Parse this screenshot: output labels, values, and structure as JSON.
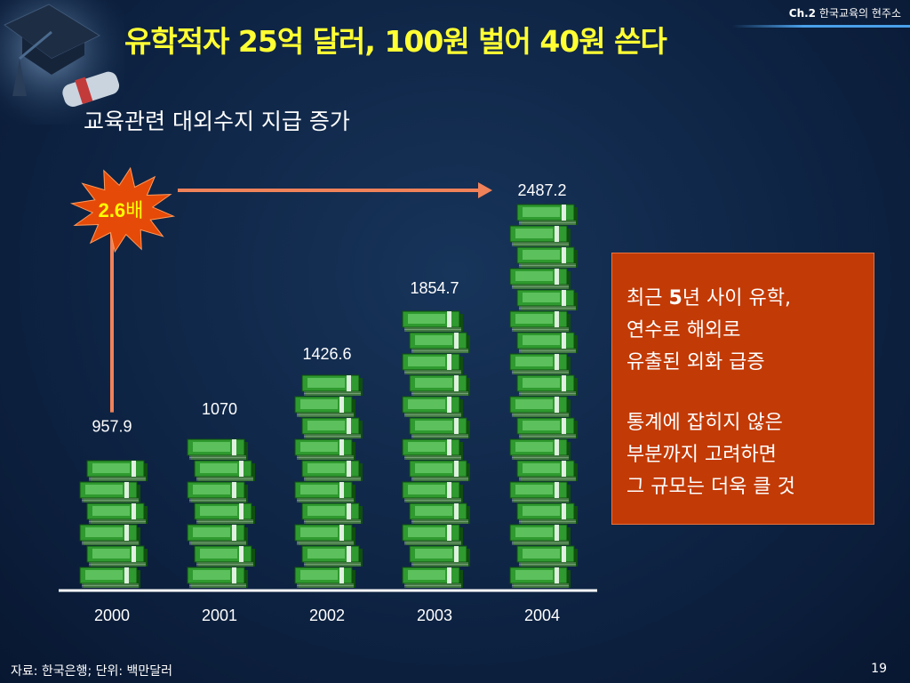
{
  "header": {
    "chapter_num": "Ch.2",
    "chapter_title": "한국교육의 현주소",
    "title": "유학적자 25억 달러, 100원 벌어 40원 쓴다",
    "subtitle": "교육관련 대외수지 지급 증가"
  },
  "chart_data": {
    "type": "bar",
    "style": "pictogram-stacked-money-bundles",
    "title": "",
    "xlabel": "",
    "ylabel": "",
    "categories": [
      "2000",
      "2001",
      "2002",
      "2003",
      "2004"
    ],
    "values": [
      957.9,
      1070,
      1426.6,
      1854.7,
      2487.2
    ],
    "value_labels": [
      "957.9",
      "1070",
      "1426.6",
      "1854.7",
      "2487.2"
    ],
    "ylim": [
      0,
      2487.2
    ],
    "grid": false,
    "annotation": {
      "label_num": "2.6",
      "label_unit": "배",
      "from_category": "2000",
      "to_category": "2004",
      "color": "#f0825a",
      "burst_color": "#e64a08",
      "text_color": "#ffff00"
    },
    "colors": {
      "bundle": "#2f9a2f",
      "bundle_light": "#6fd06f",
      "bundle_dark": "#0f4f0f",
      "baseline": "#ffffff"
    }
  },
  "callout": {
    "lines": [
      {
        "pre": "최근 ",
        "bold": "5",
        "post": "년 사이 유학,"
      },
      {
        "pre": "연수로 해외로",
        "bold": "",
        "post": ""
      },
      {
        "pre": "유출된 외화 급증",
        "bold": "",
        "post": ""
      },
      {
        "pre": "통계에 잡히지 않은",
        "bold": "",
        "post": ""
      },
      {
        "pre": "부분까지 고려하면",
        "bold": "",
        "post": ""
      },
      {
        "pre": "그 규모는 더욱 클 것",
        "bold": "",
        "post": ""
      }
    ],
    "background": "#c23a06"
  },
  "footer": {
    "source": "자료: 한국은행; 단위: 백만달러",
    "page": "19"
  },
  "colors": {
    "title": "#ffff33",
    "background": "#0e2444"
  },
  "icons": {
    "decoration": "graduation-cap-icon"
  }
}
